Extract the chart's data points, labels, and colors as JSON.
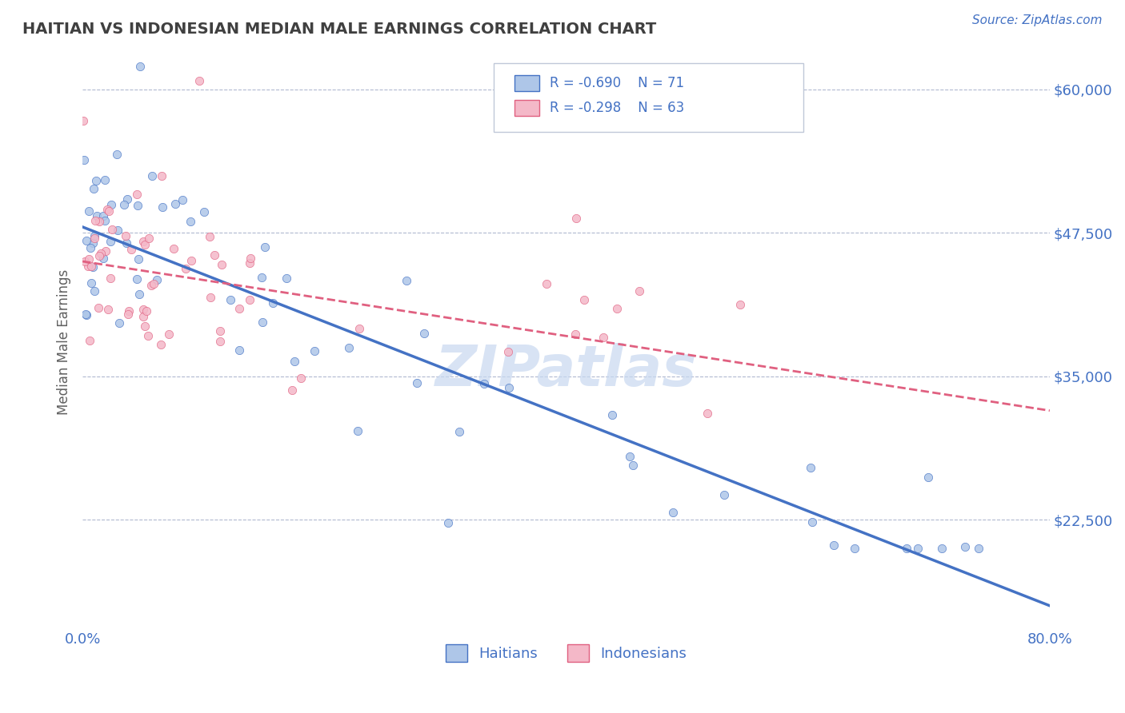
{
  "title": "HAITIAN VS INDONESIAN MEDIAN MALE EARNINGS CORRELATION CHART",
  "source_text": "Source: ZipAtlas.com",
  "ylabel": "Median Male Earnings",
  "xlim": [
    0.0,
    80.0
  ],
  "ylim": [
    13000,
    63000
  ],
  "haitian_color": "#aec6e8",
  "indonesian_color": "#f4b8c8",
  "haitian_line_color": "#4472c4",
  "indonesian_line_color2": "#e06080",
  "watermark": "ZIPatlas",
  "watermark_color": "#c8d8f0",
  "legend_r_haitian": "R = -0.690",
  "legend_n_haitian": "N = 71",
  "legend_r_indonesian": "R = -0.298",
  "legend_n_indonesian": "N = 63",
  "haitian_N": 71,
  "indonesian_N": 63,
  "title_color": "#404040",
  "axis_label_color": "#4472c4",
  "legend_text_color": "#4472c4",
  "grid_color": "#b0b8d0",
  "background_color": "#ffffff",
  "haitian_intercept": 48000,
  "haitian_slope": -412.5,
  "indonesian_intercept": 45000,
  "indonesian_slope": -162.5
}
